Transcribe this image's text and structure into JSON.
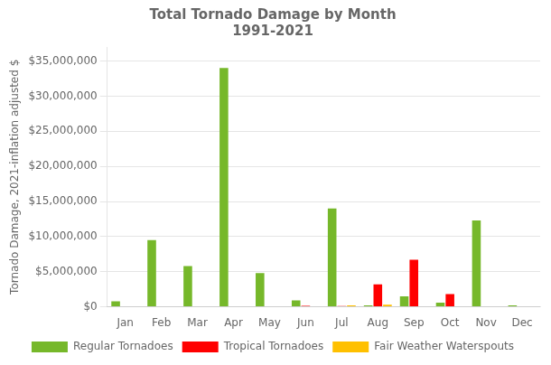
{
  "chart_data": {
    "type": "bar",
    "title": "Total Tornado Damage by Month\n1991-2021",
    "y_label": "Tornado Damage, 2021-inflation adjusted $",
    "categories": [
      "Jan",
      "Feb",
      "Mar",
      "Apr",
      "May",
      "Jun",
      "Jul",
      "Aug",
      "Sep",
      "Oct",
      "Nov",
      "Dec"
    ],
    "series": [
      {
        "name": "Regular Tornadoes",
        "color": "#76b82a",
        "values": [
          800000,
          9500000,
          5800000,
          34000000,
          4800000,
          900000,
          14000000,
          200000,
          1500000,
          600000,
          12300000,
          200000
        ]
      },
      {
        "name": "Tropical Tornadoes",
        "color": "#ff0000",
        "values": [
          0,
          0,
          0,
          0,
          0,
          150000,
          100000,
          3200000,
          6700000,
          1800000,
          0,
          0
        ]
      },
      {
        "name": "Fair Weather Waterspouts",
        "color": "#ffc000",
        "values": [
          0,
          0,
          0,
          0,
          0,
          0,
          200000,
          300000,
          0,
          0,
          0,
          0
        ]
      }
    ],
    "ylim": [
      0,
      37000000
    ],
    "yticks": [
      {
        "value": 0,
        "label": "$0"
      },
      {
        "value": 5000000,
        "label": "$5,000,000"
      },
      {
        "value": 10000000,
        "label": "$10,000,000"
      },
      {
        "value": 15000000,
        "label": "$15,000,000"
      },
      {
        "value": 20000000,
        "label": "$20,000,000"
      },
      {
        "value": 25000000,
        "label": "$25,000,000"
      },
      {
        "value": 30000000,
        "label": "$30,000,000"
      },
      {
        "value": 35000000,
        "label": "$35,000,000"
      }
    ],
    "grid": true,
    "legend": "bottom"
  }
}
